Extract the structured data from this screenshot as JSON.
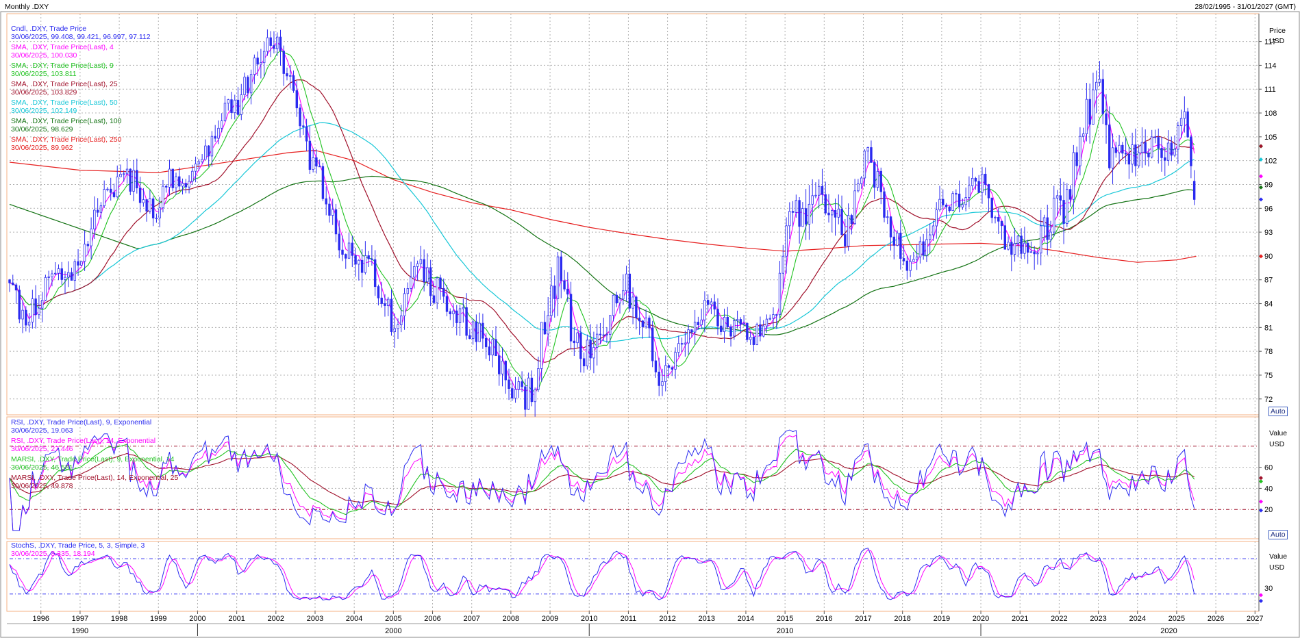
{
  "header": {
    "title": "Monthly .DXY",
    "range": "28/02/1995 - 31/01/2027 (GMT)"
  },
  "colors": {
    "frame": "#f4b183",
    "grid": "#b0b0b0",
    "candle": "#2a2af0",
    "sma4": "#ff00ff",
    "sma9": "#22c322",
    "sma25": "#a0102a",
    "sma50": "#17c7d7",
    "sma100": "#137313",
    "sma250": "#e61e1e",
    "rsi9": "#2a2af0",
    "rsi14": "#ff00ff",
    "marsi9": "#22c322",
    "marsi14": "#a0102a",
    "stoch_k": "#2a2af0",
    "stoch_d": "#ff00ff",
    "levels": "#a0102a",
    "stoch_levels": "#2a2af0"
  },
  "x_axis": {
    "years": [
      "1996",
      "1997",
      "1998",
      "1999",
      "2000",
      "2001",
      "2002",
      "2003",
      "2004",
      "2005",
      "2006",
      "2007",
      "2008",
      "2009",
      "2010",
      "2011",
      "2012",
      "2013",
      "2014",
      "2015",
      "2016",
      "2017",
      "2018",
      "2019",
      "2020",
      "2021",
      "2022",
      "2023",
      "2024",
      "2025",
      "2026",
      "2027"
    ],
    "decades": [
      "1990",
      "2000",
      "2010",
      "2020"
    ]
  },
  "price_panel": {
    "axis_title": "Price",
    "axis_unit": "USD",
    "ticks": [
      "117",
      "114",
      "111",
      "108",
      "105",
      "102",
      "99",
      "96",
      "93",
      "90",
      "87",
      "84",
      "81",
      "78",
      "75",
      "72"
    ],
    "auto_label": "Auto",
    "legend": [
      {
        "line1": "Cndl, .DXY, Trade Price",
        "line2": "30/06/2025, 99.408, 99.421, 96.997, 97.112",
        "color": "#2a2af0"
      },
      {
        "line1": "SMA, .DXY, Trade Price(Last), 4",
        "line2": "30/06/2025, 100.030",
        "color": "#ff00ff"
      },
      {
        "line1": "SMA, .DXY, Trade Price(Last), 9",
        "line2": "30/06/2025, 103.811",
        "color": "#22c322"
      },
      {
        "line1": "SMA, .DXY, Trade Price(Last), 25",
        "line2": "30/06/2025, 103.829",
        "color": "#a0102a"
      },
      {
        "line1": "SMA, .DXY, Trade Price(Last), 50",
        "line2": "30/06/2025, 102.149",
        "color": "#17c7d7"
      },
      {
        "line1": "SMA, .DXY, Trade Price(Last), 100",
        "line2": "30/06/2025, 98.629",
        "color": "#137313"
      },
      {
        "line1": "SMA, .DXY, Trade Price(Last), 250",
        "line2": "30/06/2025, 89.962",
        "color": "#e61e1e"
      }
    ]
  },
  "rsi_panel": {
    "axis_title": "Value",
    "axis_unit": "USD",
    "ticks": [
      "60",
      "40",
      "20"
    ],
    "auto_label": "Auto",
    "legend": [
      {
        "line1": "RSI, .DXY, Trade Price(Last), 9, Exponential",
        "line2": "30/06/2025, 19.063",
        "color": "#2a2af0"
      },
      {
        "line1": "RSI, .DXY, Trade Price(Last), 14, Exponential",
        "line2": "30/06/2025, 27.446",
        "color": "#ff00ff"
      },
      {
        "line1": "MARSI, .DXY, Trade Price(Last), 9, Exponential, 14",
        "line2": "30/06/2025, 46.581",
        "color": "#22c322"
      },
      {
        "line1": "MARSI, .DXY, Trade Price(Last), 14, Exponential, 25",
        "line2": "30/06/2025, 49.878",
        "color": "#a0102a"
      }
    ]
  },
  "stoch_panel": {
    "axis_title": "Value",
    "axis_unit": "USD",
    "ticks": [
      "30"
    ],
    "legend": [
      {
        "line1": "StochS, .DXY, Trade Price, 5, 3, Simple, 3",
        "line2": "30/06/2025, 8.335, 18.194",
        "color": "#2a2af0",
        "color2": "#ff00ff"
      }
    ]
  },
  "chart_data": {
    "type": "line",
    "title": "Monthly .DXY",
    "x_unit": "year",
    "xlim": [
      1995.2,
      2027.1
    ],
    "price": {
      "ylim": [
        70,
        120.5
      ],
      "candle_anchor_x": [
        1995.2,
        1995.5,
        1996.0,
        1996.5,
        1997.0,
        1997.3,
        1997.6,
        1998.0,
        1998.4,
        1998.7,
        1999.0,
        1999.3,
        1999.6,
        2000.0,
        2000.4,
        2000.7,
        2001.0,
        2001.3,
        2001.6,
        2002.0,
        2002.3,
        2002.6,
        2003.0,
        2003.3,
        2003.6,
        2004.0,
        2004.4,
        2004.8,
        2005.0,
        2005.3,
        2005.6,
        2006.0,
        2006.5,
        2007.0,
        2007.5,
        2008.0,
        2008.3,
        2008.6,
        2008.9,
        2009.2,
        2009.6,
        2009.9,
        2010.2,
        2010.5,
        2010.8,
        2011.2,
        2011.5,
        2011.8,
        2012.2,
        2012.5,
        2012.8,
        2013.2,
        2013.5,
        2013.8,
        2014.2,
        2014.5,
        2014.8,
        2015.0,
        2015.3,
        2015.6,
        2016.0,
        2016.3,
        2016.6,
        2016.9,
        2017.1,
        2017.4,
        2017.7,
        2018.0,
        2018.3,
        2018.6,
        2019.0,
        2019.4,
        2019.7,
        2020.0,
        2020.3,
        2020.6,
        2020.9,
        2021.2,
        2021.5,
        2021.8,
        2022.2,
        2022.5,
        2022.75,
        2022.95,
        2023.2,
        2023.5,
        2023.8,
        2024.2,
        2024.5,
        2024.8,
        2025.0,
        2025.2,
        2025.4,
        2025.5
      ],
      "candle_anchor_close": [
        87,
        82,
        85,
        87,
        88,
        95,
        97,
        99,
        100,
        96,
        96,
        100,
        98,
        101,
        104,
        108,
        109,
        112,
        115,
        117,
        113,
        106,
        101,
        98,
        93,
        89,
        88,
        84,
        82,
        85,
        89,
        86,
        84,
        81,
        78,
        74,
        72,
        74,
        83,
        88,
        80,
        77,
        81,
        82,
        87,
        84,
        80,
        75,
        78,
        80,
        83,
        83,
        81,
        81,
        80,
        81,
        83,
        94,
        96,
        96,
        98,
        95,
        93,
        101,
        102,
        99,
        94,
        90,
        89,
        92,
        96,
        97,
        98,
        99,
        96,
        93,
        91,
        90,
        92,
        95,
        97,
        104,
        108,
        113,
        104,
        102,
        102,
        104,
        105,
        103,
        104,
        108,
        102,
        97
      ],
      "candle_vol_x": [
        1995.2,
        1998.5,
        1999.5,
        2001.5,
        2002.0,
        2003.5,
        2005.0,
        2008.3,
        2008.6,
        2009.0,
        2010.5,
        2012.0,
        2014.5,
        2015.2,
        2017.0,
        2018.0,
        2020.0,
        2020.5,
        2022.5,
        2022.9,
        2023.5,
        2025.0,
        2025.5
      ],
      "candle_vol_v": [
        2.6,
        2.0,
        1.6,
        2.2,
        2.4,
        2.6,
        2.6,
        2.2,
        2.8,
        3.0,
        3.0,
        2.2,
        1.6,
        3.2,
        2.8,
        2.2,
        2.2,
        2.6,
        3.4,
        3.8,
        2.6,
        2.6,
        2.4
      ],
      "sma": [
        {
          "period": 4,
          "last": 100.03
        },
        {
          "period": 9,
          "last": 103.811
        },
        {
          "period": 25,
          "last": 103.829
        },
        {
          "period": 50,
          "last": 102.149
        },
        {
          "period": 100,
          "last": 98.629
        },
        {
          "period": 250,
          "last": 89.962
        }
      ],
      "last_candle": {
        "date": "30/06/2025",
        "open": 99.408,
        "high": 99.421,
        "low": 96.997,
        "close": 97.112
      },
      "sma250_path_x": [
        1995.2,
        1997.0,
        1999.0,
        2001.0,
        2002.3,
        2003.0,
        2004.0,
        2005.0,
        2006.0,
        2007.0,
        2008.0,
        2009.0,
        2010.0,
        2011.0,
        2012.0,
        2013.0,
        2014.0,
        2015.0,
        2016.0,
        2017.0,
        2018.0,
        2019.0,
        2020.0,
        2021.0,
        2022.0,
        2023.0,
        2024.0,
        2025.0,
        2025.5
      ],
      "sma250_path_y": [
        101.8,
        100.8,
        100.5,
        102.0,
        103.0,
        103.3,
        102.0,
        99.6,
        98.0,
        96.7,
        95.8,
        94.6,
        93.6,
        92.8,
        92.1,
        91.5,
        91.0,
        90.6,
        90.9,
        91.3,
        91.4,
        91.5,
        91.6,
        91.3,
        90.6,
        89.8,
        89.2,
        89.5,
        89.96
      ]
    },
    "rsi": {
      "ylim": [
        0,
        100
      ],
      "levels": [
        80,
        20
      ],
      "last": {
        "rsi9": 19.063,
        "rsi14": 27.446,
        "marsi9": 46.581,
        "marsi14": 49.878
      }
    },
    "stochastic": {
      "ylim": [
        0,
        100
      ],
      "levels": [
        80,
        20
      ],
      "last": {
        "k": 8.335,
        "d": 18.194
      }
    }
  }
}
